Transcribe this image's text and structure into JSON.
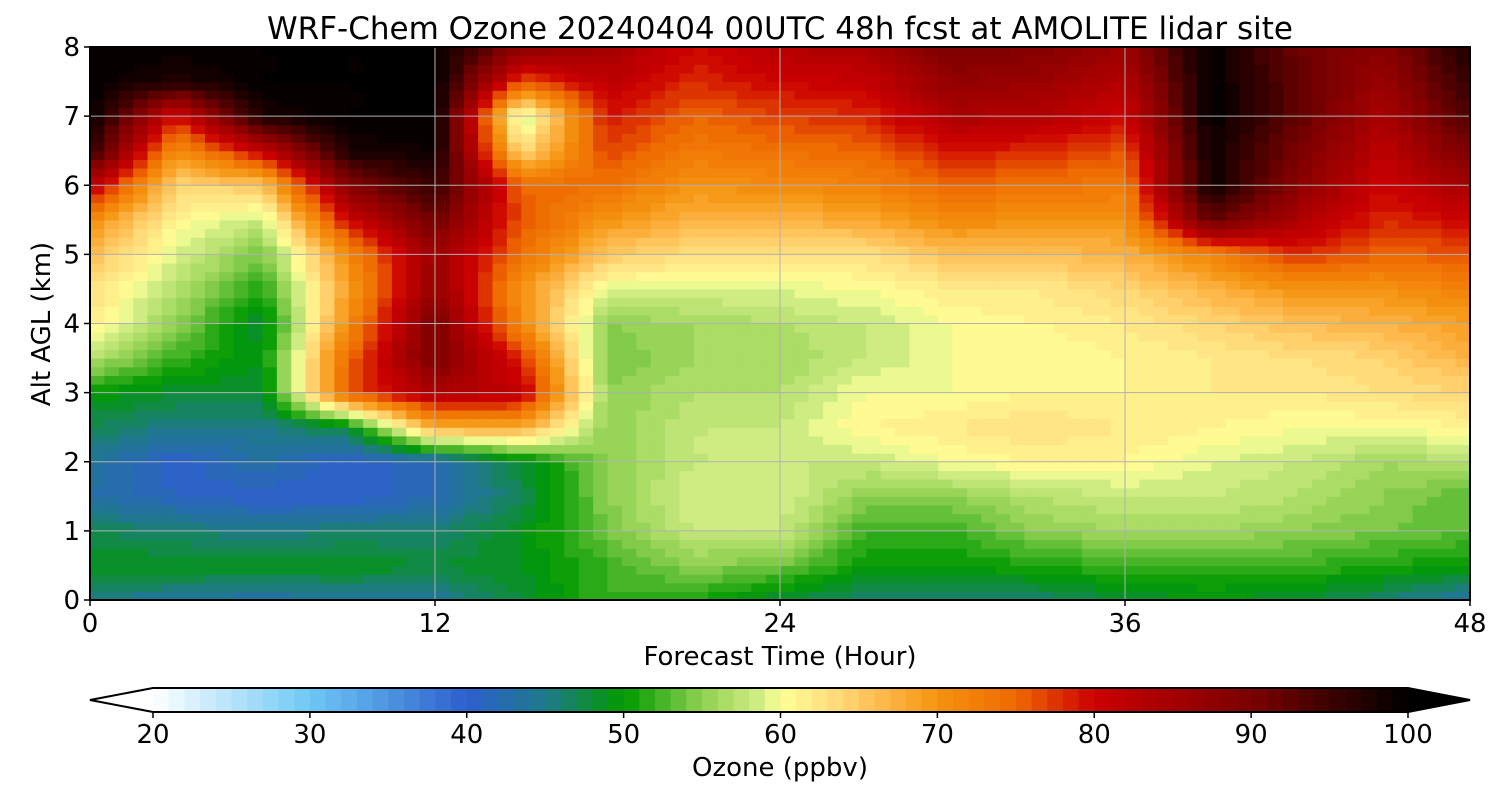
{
  "chart_data": {
    "type": "heatmap",
    "title": "WRF-Chem Ozone  20240404 00UTC 48h fcst at AMOLITE lidar site",
    "xlabel": "Forecast Time (Hour)",
    "ylabel": "Alt AGL (km)",
    "xlim": [
      0,
      48
    ],
    "ylim": [
      0,
      8
    ],
    "x_ticks": [
      "0",
      "12",
      "24",
      "36",
      "48"
    ],
    "y_ticks": [
      "0",
      "1",
      "2",
      "3",
      "4",
      "5",
      "6",
      "7",
      "8"
    ],
    "grid": true,
    "x": [
      0,
      3,
      6,
      9,
      12,
      15,
      18,
      21,
      24,
      27,
      30,
      33,
      36,
      39,
      42,
      45,
      48
    ],
    "y": [
      0,
      0.5,
      1,
      1.5,
      2,
      2.5,
      3,
      3.5,
      4,
      4.5,
      5,
      5.5,
      6,
      6.5,
      7,
      7.5,
      8
    ],
    "z": [
      [
        45,
        44,
        43,
        44,
        44,
        48,
        52,
        51,
        48,
        46,
        46,
        46,
        48,
        49,
        48,
        46,
        43
      ],
      [
        49,
        49,
        49,
        49,
        48,
        49,
        52,
        55,
        54,
        50,
        50,
        51,
        52,
        52,
        52,
        51,
        50
      ],
      [
        47,
        46,
        45,
        46,
        46,
        49,
        54,
        58,
        58,
        52,
        52,
        55,
        56,
        56,
        55,
        54,
        53
      ],
      [
        43,
        41,
        40,
        40,
        42,
        47,
        55,
        59,
        59,
        55,
        55,
        57,
        58,
        58,
        57,
        55,
        53
      ],
      [
        44,
        40,
        43,
        40,
        42,
        48,
        55,
        58,
        58,
        58,
        60,
        61,
        61,
        59,
        58,
        56,
        57
      ],
      [
        47,
        45,
        45,
        48,
        68,
        68,
        55,
        58,
        58,
        61,
        62,
        63,
        62,
        61,
        60,
        60,
        61
      ],
      [
        50,
        48,
        48,
        76,
        84,
        82,
        55,
        57,
        57,
        60,
        60,
        61,
        61,
        62,
        62,
        63,
        64
      ],
      [
        57,
        52,
        49,
        75,
        90,
        78,
        54,
        56,
        56,
        58,
        60,
        60,
        61,
        62,
        63,
        64,
        67
      ],
      [
        62,
        55,
        48,
        71,
        90,
        71,
        55,
        56,
        57,
        58,
        60,
        61,
        62,
        64,
        66,
        67,
        69
      ],
      [
        63,
        57,
        51,
        69,
        87,
        70,
        59,
        59,
        59,
        60,
        62,
        62,
        64,
        67,
        70,
        70,
        72
      ],
      [
        66,
        59,
        54,
        71,
        86,
        74,
        65,
        63,
        63,
        63,
        66,
        66,
        67,
        72,
        78,
        75,
        76
      ],
      [
        71,
        61,
        58,
        80,
        91,
        76,
        70,
        67,
        67,
        68,
        71,
        70,
        70,
        92,
        84,
        78,
        80
      ],
      [
        82,
        64,
        65,
        89,
        96,
        75,
        74,
        70,
        71,
        72,
        75,
        74,
        73,
        99,
        88,
        80,
        85
      ],
      [
        96,
        70,
        81,
        98,
        99,
        63,
        77,
        73,
        74,
        75,
        79,
        78,
        76,
        99,
        90,
        82,
        90
      ],
      [
        100,
        79,
        98,
        100,
        100,
        57,
        79,
        75,
        77,
        78,
        84,
        83,
        80,
        100,
        92,
        84,
        94
      ],
      [
        100,
        97,
        100,
        100,
        100,
        76,
        82,
        78,
        80,
        81,
        87,
        86,
        83,
        100,
        92,
        86,
        96
      ],
      [
        100,
        100,
        100,
        100,
        100,
        88,
        85,
        80,
        83,
        84,
        90,
        89,
        86,
        100,
        91,
        88,
        98
      ]
    ],
    "colorbar": {
      "label": "Ozone  (ppbv)",
      "min": 20,
      "max": 100,
      "extend": "both",
      "ticks": [
        "20",
        "30",
        "40",
        "50",
        "60",
        "70",
        "80",
        "90",
        "100"
      ],
      "levels_step": 1,
      "stops": [
        {
          "v": 20,
          "c": "#ffffff"
        },
        {
          "v": 30,
          "c": "#6ec8f5"
        },
        {
          "v": 40,
          "c": "#2d5fcc"
        },
        {
          "v": 45,
          "c": "#1f7a8a"
        },
        {
          "v": 50,
          "c": "#009a00"
        },
        {
          "v": 55,
          "c": "#8fd050"
        },
        {
          "v": 59,
          "c": "#d8f08a"
        },
        {
          "v": 60,
          "c": "#ffff96"
        },
        {
          "v": 63,
          "c": "#ffe080"
        },
        {
          "v": 66,
          "c": "#ffbf55"
        },
        {
          "v": 70,
          "c": "#f5920f"
        },
        {
          "v": 75,
          "c": "#ee6a00"
        },
        {
          "v": 80,
          "c": "#cc0000"
        },
        {
          "v": 90,
          "c": "#7a0000"
        },
        {
          "v": 100,
          "c": "#000000"
        }
      ]
    }
  }
}
